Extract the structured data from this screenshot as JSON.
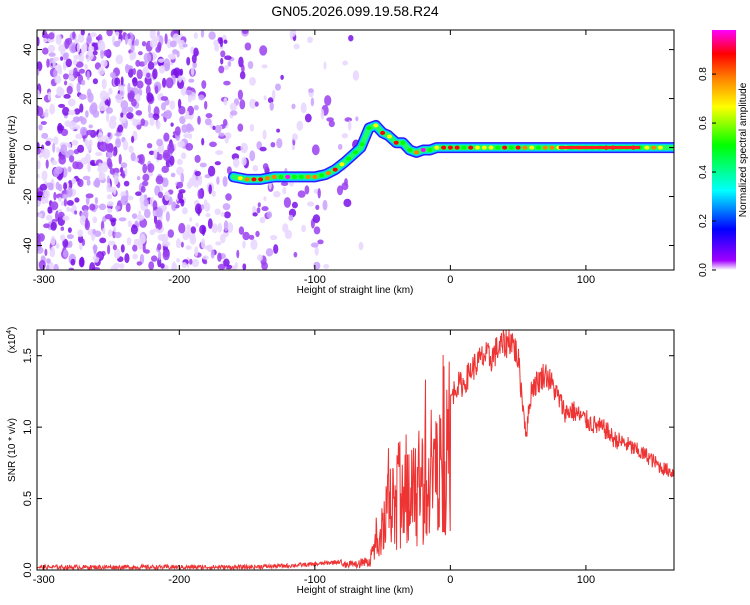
{
  "chart_data": [
    {
      "type": "heatmap",
      "title": "GN05.2026.099.19.58.R24",
      "xlabel": "Height of straight line (km)",
      "ylabel": "Frequency (Hz)",
      "xlim": [
        -305,
        165
      ],
      "ylim": [
        -50,
        48
      ],
      "xticks": [
        -300,
        -200,
        -100,
        0,
        100
      ],
      "yticks": [
        -40,
        -20,
        0,
        20,
        40
      ],
      "colorbar": {
        "label": "Normalized spectral amplitude",
        "range": [
          0,
          0.98
        ],
        "ticks": [
          0.0,
          0.2,
          0.4,
          0.6,
          0.8
        ],
        "colors": [
          "#ffffff",
          "#a000ff",
          "#0000ff",
          "#00ffff",
          "#00ff00",
          "#ffff00",
          "#ff8000",
          "#ff0000",
          "#ff00ff"
        ]
      },
      "dominant_ridge": {
        "x": [
          -160,
          -150,
          -140,
          -130,
          -120,
          -110,
          -100,
          -92,
          -85,
          -78,
          -72,
          -66,
          -60,
          -55,
          -50,
          -46,
          -40,
          -35,
          -30,
          -25,
          -20,
          -15,
          -10,
          -5,
          0,
          20,
          40,
          60,
          80,
          100,
          120,
          140,
          165
        ],
        "y": [
          -12,
          -13,
          -13,
          -12,
          -12,
          -12,
          -12,
          -11,
          -9,
          -6,
          -3,
          0,
          8,
          9,
          6,
          5,
          2,
          2,
          -1,
          -2,
          -1,
          -1,
          0,
          0,
          0,
          0,
          0,
          0,
          0,
          0,
          0,
          0,
          0
        ]
      }
    },
    {
      "type": "line",
      "title": "",
      "xlabel": "Height of straight line (km)",
      "ylabel": "SNR (10 * v/v)",
      "ylabel_multiplier": "(x10",
      "ylabel_multiplier_exp": "4",
      "ylabel_multiplier_close": ")",
      "xlim": [
        -305,
        165
      ],
      "ylim": [
        0,
        1.68
      ],
      "xticks": [
        -300,
        -200,
        -100,
        0,
        100
      ],
      "yticks": [
        0.0,
        0.5,
        1.0,
        1.5
      ],
      "color": "#ee3333",
      "series": [
        {
          "x": [
            -305,
            -280,
            -250,
            -200,
            -150,
            -120,
            -100,
            -90,
            -80,
            -70,
            -60,
            -55,
            -50,
            -46,
            -42,
            -38,
            -34,
            -30,
            -26,
            -22,
            -18,
            -14,
            -10,
            -5,
            0,
            5,
            10,
            15,
            20,
            25,
            30,
            35,
            40,
            45,
            50,
            53,
            56,
            60,
            65,
            70,
            75,
            80,
            85,
            90,
            95,
            100,
            105,
            110,
            115,
            120,
            125,
            130,
            135,
            140,
            145,
            150,
            155,
            160,
            165
          ],
          "y": [
            0.02,
            0.02,
            0.02,
            0.02,
            0.02,
            0.03,
            0.04,
            0.05,
            0.06,
            0.07,
            0.1,
            0.3,
            0.45,
            0.7,
            0.8,
            0.9,
            1.0,
            0.9,
            1.05,
            1.0,
            1.1,
            1.2,
            1.1,
            1.2,
            1.2,
            1.3,
            1.3,
            1.4,
            1.45,
            1.5,
            1.48,
            1.55,
            1.58,
            1.62,
            1.48,
            1.2,
            0.95,
            1.28,
            1.32,
            1.38,
            1.3,
            1.2,
            1.1,
            1.12,
            1.08,
            1.05,
            1.02,
            1.0,
            0.98,
            0.92,
            0.9,
            0.88,
            0.85,
            0.82,
            0.8,
            0.76,
            0.72,
            0.7,
            0.68
          ]
        }
      ]
    }
  ]
}
